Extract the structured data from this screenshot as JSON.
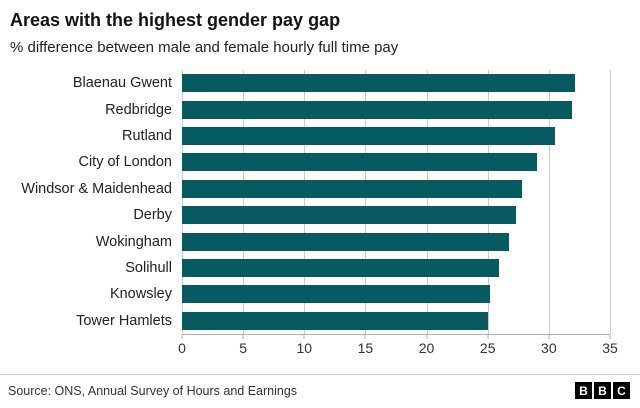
{
  "header": {
    "title": "Areas with the highest gender pay gap",
    "subtitle": "% difference between male and female hourly full time pay"
  },
  "chart_data": {
    "type": "bar",
    "orientation": "horizontal",
    "title": "Areas with the highest gender pay gap",
    "xlabel": "",
    "ylabel": "",
    "categories": [
      "Blaenau Gwent",
      "Redbridge",
      "Rutland",
      "City of London",
      "Windsor & Maidenhead",
      "Derby",
      "Wokingham",
      "Solihull",
      "Knowsley",
      "Tower Hamlets"
    ],
    "values": [
      32.1,
      31.9,
      30.5,
      29.0,
      27.8,
      27.3,
      26.7,
      25.9,
      25.2,
      25.0
    ],
    "xlim": [
      0,
      35
    ],
    "x_ticks": [
      0,
      5,
      10,
      15,
      20,
      25,
      30,
      35
    ],
    "grid": true,
    "legend": "none",
    "bar_color": "#065a60"
  },
  "footer": {
    "source": "Source: ONS, Annual Survey of Hours and Earnings",
    "logo_letters": [
      "B",
      "B",
      "C"
    ]
  }
}
